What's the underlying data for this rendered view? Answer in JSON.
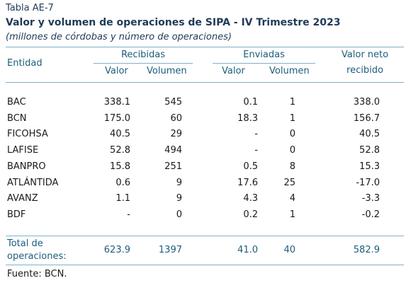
{
  "table_label": "Tabla AE-7",
  "title": "Valor y volumen de operaciones de SIPA - IV Trimestre 2023",
  "subtitle": "(millones de córdobas y número de operaciones)",
  "headers": {
    "entidad": "Entidad",
    "recibidas": "Recibidas",
    "enviadas": "Enviadas",
    "valor_neto_1": "Valor neto",
    "valor_neto_2": "recibido",
    "valor": "Valor",
    "volumen": "Volumen"
  },
  "rows": [
    {
      "entidad": "BAC",
      "rec_valor": "338.1",
      "rec_vol": "545",
      "env_valor": "0.1",
      "env_vol": "1",
      "neto": "338.0"
    },
    {
      "entidad": "BCN",
      "rec_valor": "175.0",
      "rec_vol": "60",
      "env_valor": "18.3",
      "env_vol": "1",
      "neto": "156.7"
    },
    {
      "entidad": "FICOHSA",
      "rec_valor": "40.5",
      "rec_vol": "29",
      "env_valor": "-",
      "env_vol": "0",
      "neto": "40.5"
    },
    {
      "entidad": "LAFISE",
      "rec_valor": "52.8",
      "rec_vol": "494",
      "env_valor": "-",
      "env_vol": "0",
      "neto": "52.8"
    },
    {
      "entidad": "BANPRO",
      "rec_valor": "15.8",
      "rec_vol": "251",
      "env_valor": "0.5",
      "env_vol": "8",
      "neto": "15.3"
    },
    {
      "entidad": "ATLÁNTIDA",
      "rec_valor": "0.6",
      "rec_vol": "9",
      "env_valor": "17.6",
      "env_vol": "25",
      "neto": "-17.0"
    },
    {
      "entidad": "AVANZ",
      "rec_valor": "1.1",
      "rec_vol": "9",
      "env_valor": "4.3",
      "env_vol": "4",
      "neto": "-3.3"
    },
    {
      "entidad": "BDF",
      "rec_valor": "-",
      "rec_vol": "0",
      "env_valor": "0.2",
      "env_vol": "1",
      "neto": "-0.2"
    }
  ],
  "total": {
    "label_1": "Total de",
    "label_2": "operaciones:",
    "rec_valor": "623.9",
    "rec_vol": "1397",
    "env_valor": "41.0",
    "env_vol": "40",
    "neto": "582.9"
  },
  "source": "Fuente: BCN."
}
